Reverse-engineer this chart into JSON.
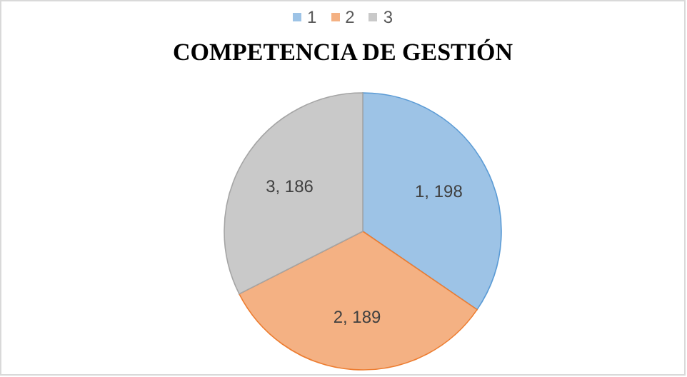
{
  "chart_data": {
    "type": "pie",
    "title": "COMPETENCIA DE GESTIÓN",
    "categories": [
      "1",
      "2",
      "3"
    ],
    "values": [
      198,
      189,
      186
    ],
    "value_labels": [
      "1, 198",
      "2, 189",
      "3, 186"
    ],
    "colors": [
      "#9dc3e6",
      "#f4b183",
      "#c9c9c9"
    ],
    "legend": "top"
  }
}
